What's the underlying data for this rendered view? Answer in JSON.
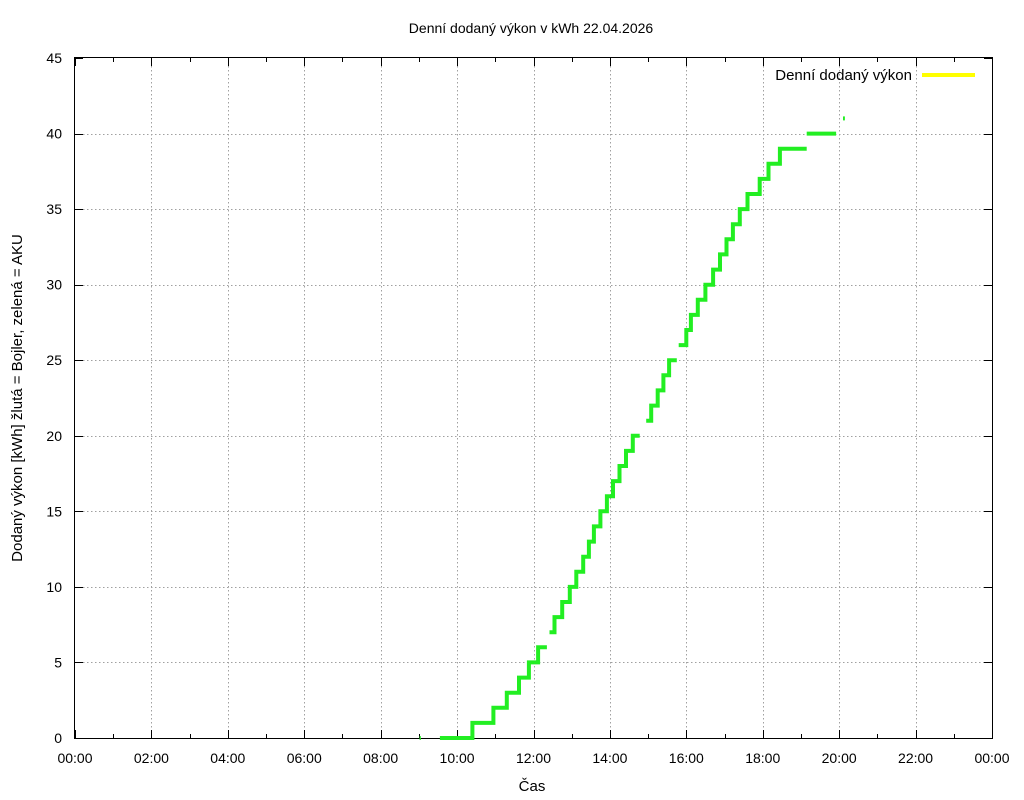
{
  "chart_data": {
    "type": "line",
    "title": "Denní dodaný výkon v kWh 22.04.2026",
    "xlabel": "Čas",
    "ylabel": "Dodaný výkon [kWh]  žlutá = Bojler, zelená = AKU",
    "xlim": [
      0,
      24
    ],
    "ylim": [
      0,
      45
    ],
    "x_ticks": [
      "00:00",
      "02:00",
      "04:00",
      "06:00",
      "08:00",
      "10:00",
      "12:00",
      "14:00",
      "16:00",
      "18:00",
      "20:00",
      "22:00",
      "00:00"
    ],
    "y_ticks": [
      "0",
      "5",
      "10",
      "15",
      "20",
      "25",
      "30",
      "35",
      "40",
      "45"
    ],
    "grid": true,
    "legend_position": "top-right",
    "series": [
      {
        "name": "Denní dodaný výkon",
        "color": "#ffff00",
        "values": []
      },
      {
        "color": "#22ee22",
        "segments": [
          [
            [
              9.02,
              0
            ],
            [
              9.05,
              0
            ]
          ],
          [
            [
              9.55,
              0
            ],
            [
              10.4,
              0
            ],
            [
              10.4,
              1
            ],
            [
              10.95,
              1
            ],
            [
              10.95,
              2
            ],
            [
              11.3,
              2
            ],
            [
              11.3,
              3
            ],
            [
              11.62,
              3
            ],
            [
              11.62,
              4
            ],
            [
              11.88,
              4
            ],
            [
              11.88,
              5
            ],
            [
              12.12,
              5
            ],
            [
              12.12,
              6
            ],
            [
              12.35,
              6
            ]
          ],
          [
            [
              12.42,
              7
            ],
            [
              12.55,
              7
            ],
            [
              12.55,
              8
            ],
            [
              12.75,
              8
            ],
            [
              12.75,
              9
            ],
            [
              12.95,
              9
            ],
            [
              12.95,
              10
            ],
            [
              13.12,
              10
            ],
            [
              13.12,
              11
            ],
            [
              13.3,
              11
            ],
            [
              13.3,
              12
            ],
            [
              13.45,
              12
            ],
            [
              13.45,
              13
            ],
            [
              13.58,
              13
            ],
            [
              13.58,
              14
            ],
            [
              13.75,
              14
            ],
            [
              13.75,
              15
            ],
            [
              13.92,
              15
            ],
            [
              13.92,
              16
            ],
            [
              14.08,
              16
            ],
            [
              14.08,
              17
            ],
            [
              14.25,
              17
            ],
            [
              14.25,
              18
            ],
            [
              14.42,
              18
            ],
            [
              14.42,
              19
            ],
            [
              14.6,
              19
            ],
            [
              14.6,
              20
            ],
            [
              14.78,
              20
            ]
          ],
          [
            [
              14.95,
              21
            ],
            [
              15.08,
              21
            ],
            [
              15.08,
              22
            ],
            [
              15.25,
              22
            ],
            [
              15.25,
              23
            ],
            [
              15.4,
              23
            ],
            [
              15.4,
              24
            ],
            [
              15.55,
              24
            ],
            [
              15.55,
              25
            ],
            [
              15.75,
              25
            ]
          ],
          [
            [
              15.8,
              26
            ],
            [
              16.0,
              26
            ],
            [
              16.0,
              27
            ],
            [
              16.12,
              27
            ],
            [
              16.12,
              28
            ],
            [
              16.3,
              28
            ],
            [
              16.3,
              29
            ],
            [
              16.5,
              29
            ],
            [
              16.5,
              30
            ],
            [
              16.7,
              30
            ],
            [
              16.7,
              31
            ],
            [
              16.88,
              31
            ],
            [
              16.88,
              32
            ],
            [
              17.05,
              32
            ],
            [
              17.05,
              33
            ],
            [
              17.22,
              33
            ],
            [
              17.22,
              34
            ],
            [
              17.4,
              34
            ],
            [
              17.4,
              35
            ],
            [
              17.6,
              35
            ],
            [
              17.6,
              36
            ],
            [
              17.92,
              36
            ],
            [
              17.92,
              37
            ],
            [
              18.15,
              37
            ],
            [
              18.15,
              38
            ],
            [
              18.45,
              38
            ],
            [
              18.45,
              39
            ],
            [
              19.15,
              39
            ]
          ],
          [
            [
              19.15,
              40
            ],
            [
              19.92,
              40
            ]
          ],
          [
            [
              20.1,
              41
            ],
            [
              20.15,
              41
            ]
          ]
        ]
      }
    ]
  }
}
